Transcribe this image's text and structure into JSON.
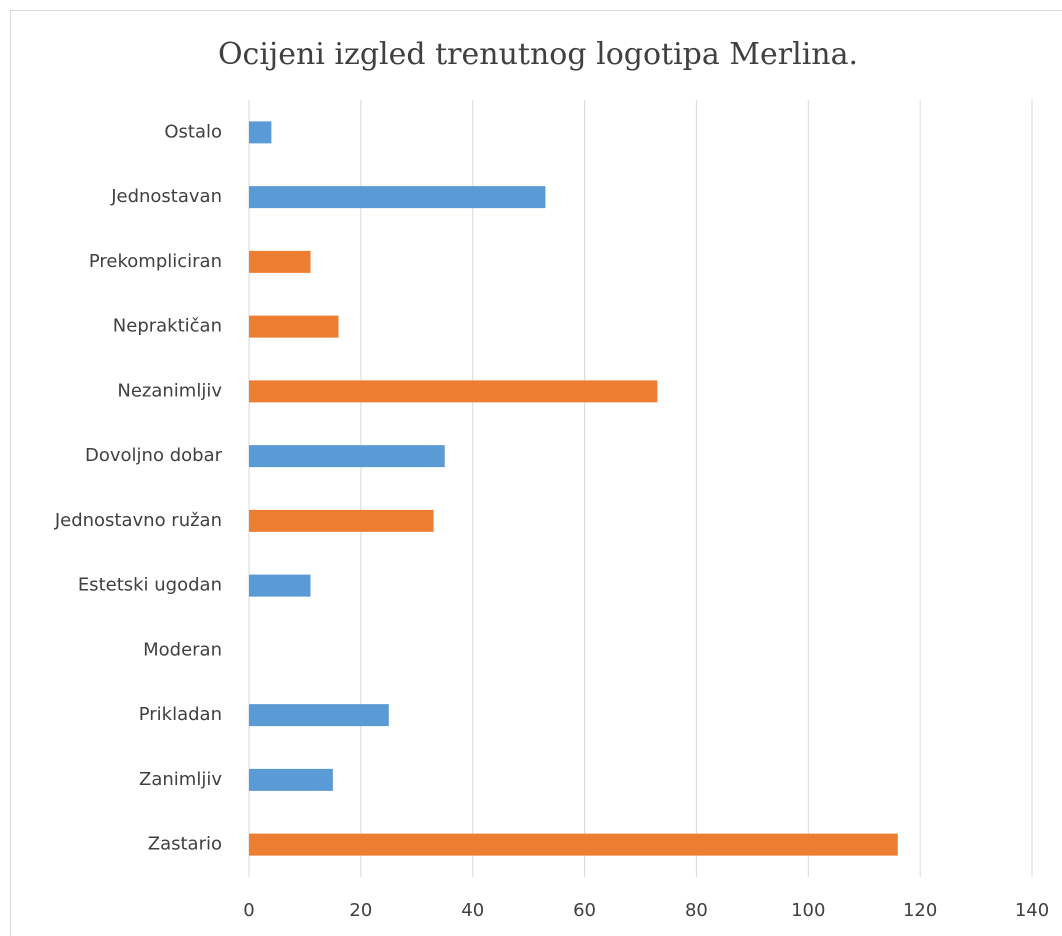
{
  "chart_data": {
    "type": "barh",
    "title": "Ocijeni izgled trenutnog logotipa Merlina.",
    "categories": [
      "Ostalo",
      "Jednostavan",
      "Prekompliciran",
      "Nepraktičan",
      "Nezanimljiv",
      "Dovoljno dobar",
      "Jednostavno ružan",
      "Estetski ugodan",
      "Moderan",
      "Prikladan",
      "Zanimljiv",
      "Zastario"
    ],
    "values": [
      4,
      53,
      11,
      16,
      73,
      35,
      33,
      11,
      0,
      25,
      15,
      116
    ],
    "colors": [
      "#5b9bd5",
      "#5b9bd5",
      "#ed7d31",
      "#ed7d31",
      "#ed7d31",
      "#5b9bd5",
      "#ed7d31",
      "#5b9bd5",
      "#5b9bd5",
      "#5b9bd5",
      "#5b9bd5",
      "#ed7d31"
    ],
    "xlim": [
      0,
      140
    ],
    "xticks": [
      0,
      20,
      40,
      60,
      80,
      100,
      120,
      140
    ],
    "grid": true
  }
}
